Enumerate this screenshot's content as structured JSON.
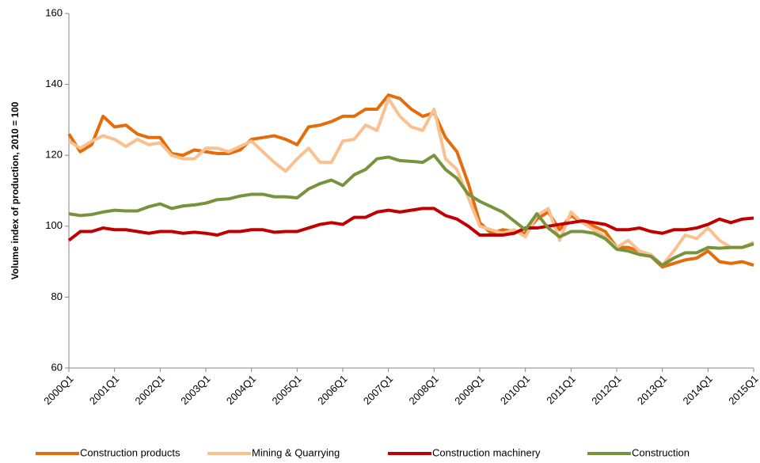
{
  "chart_data": {
    "type": "line",
    "ylabel": "Volume index of production, 2010 = 100",
    "categories": [
      "2000Q1",
      null,
      null,
      null,
      "2001Q1",
      null,
      null,
      null,
      "2002Q1",
      null,
      null,
      null,
      "2003Q1",
      null,
      null,
      null,
      "2004Q1",
      null,
      null,
      null,
      "2005Q1",
      null,
      null,
      null,
      "2006Q1",
      null,
      null,
      null,
      "2007Q1",
      null,
      null,
      null,
      "2008Q1",
      null,
      null,
      null,
      "2009Q1",
      null,
      null,
      null,
      "2010Q1",
      null,
      null,
      null,
      "2011Q1",
      null,
      null,
      null,
      "2012Q1",
      null,
      null,
      null,
      "2013Q1",
      null,
      null,
      null,
      "2014Q1",
      null,
      null,
      null,
      "2015Q1"
    ],
    "ylim": [
      60,
      160
    ],
    "yticks": [
      60,
      80,
      100,
      120,
      140,
      160
    ],
    "grid": false,
    "legend": "bottom",
    "series": [
      {
        "name": "Construction products",
        "color": "#E46C0A",
        "values": [
          126,
          121,
          123,
          131,
          128,
          128.5,
          126,
          125,
          125,
          120.5,
          120,
          121.5,
          121,
          120.5,
          120.5,
          121.5,
          124.5,
          125,
          125.5,
          124.5,
          123,
          128,
          128.5,
          129.5,
          131,
          131,
          133,
          133,
          137,
          136,
          133,
          131,
          132,
          125,
          121,
          112,
          101,
          98,
          99,
          98.5,
          98,
          102,
          104,
          99,
          103,
          101,
          100,
          98.5,
          94,
          94,
          93,
          91.5,
          88.5,
          89.5,
          90.5,
          91,
          93,
          90,
          89.5,
          90,
          89
        ]
      },
      {
        "name": "Mining & Quarrying",
        "color": "#FAC090",
        "values": [
          124,
          122,
          124,
          125.5,
          124.5,
          122.5,
          124.5,
          123,
          123.5,
          120,
          119,
          119,
          122,
          122,
          121,
          122.5,
          124,
          121,
          118,
          115.5,
          119,
          122,
          118,
          118,
          124,
          124.5,
          128.5,
          127,
          136,
          131,
          128,
          127,
          133,
          119,
          116,
          108,
          100,
          99,
          98,
          99,
          97,
          103,
          105,
          96,
          104,
          101,
          99,
          97,
          94,
          96,
          93,
          92,
          89,
          93,
          97.5,
          96.5,
          99.5,
          96,
          94,
          94,
          95.5
        ]
      },
      {
        "name": "Construction machinery",
        "color": "#C00000",
        "values": [
          96,
          98.5,
          98.5,
          99.5,
          99,
          99,
          98.5,
          98,
          98.5,
          98.5,
          98,
          98.3,
          98,
          97.5,
          98.5,
          98.5,
          99,
          99,
          98.3,
          98.5,
          98.5,
          99.5,
          100.5,
          101,
          100.5,
          102.5,
          102.5,
          104,
          104.5,
          104,
          104.5,
          105,
          105,
          103,
          102,
          100,
          97.5,
          97.5,
          97.5,
          98,
          99.5,
          99.5,
          100,
          100.5,
          101,
          101.5,
          101,
          100.5,
          99,
          99,
          99.5,
          98.5,
          98,
          99,
          99,
          99.5,
          100.5,
          102,
          101,
          102,
          102.3
        ]
      },
      {
        "name": "Construction",
        "color": "#77933C",
        "values": [
          103.5,
          103,
          103.3,
          104,
          104.5,
          104.3,
          104.3,
          105.5,
          106.3,
          105,
          105.7,
          106,
          106.5,
          107.5,
          107.7,
          108.5,
          109,
          109,
          108.3,
          108.3,
          108,
          110.5,
          112,
          113,
          111.5,
          114.5,
          116,
          119,
          119.5,
          118.5,
          118.3,
          118,
          120,
          116,
          113.5,
          109,
          107,
          105.5,
          104,
          101.5,
          99,
          103.5,
          99.5,
          97,
          98.5,
          98.5,
          98,
          96.5,
          93.5,
          93,
          92,
          91.5,
          89,
          91,
          92.5,
          92.5,
          94,
          93.8,
          94,
          94,
          95
        ]
      }
    ]
  }
}
